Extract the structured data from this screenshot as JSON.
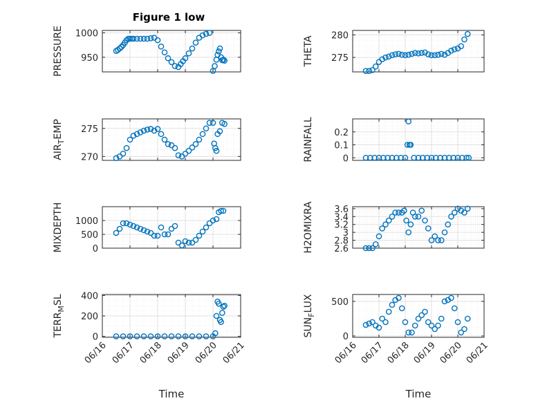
{
  "marker_color": "#0072BD",
  "chart_data": [
    {
      "type": "scatter",
      "title": "Figure 1 low",
      "ylabel": "PRESSURE",
      "xlabel": "",
      "xlim": [
        "06/16",
        "06/21"
      ],
      "ylim": [
        920,
        1005
      ],
      "xticks": [
        "06/16",
        "06/17",
        "06/18",
        "06/19",
        "06/20",
        "06/21"
      ],
      "show_xticklabels": false,
      "yticks": [
        950,
        1000
      ],
      "series": [
        {
          "x": [
            "06/16 12:00",
            "06/16 13:30",
            "06/16 15:00",
            "06/16 16:30",
            "06/16 18:00",
            "06/16 19:30",
            "06/16 21:00",
            "06/16 22:30",
            "06/17 00:00",
            "06/17 01:30",
            "06/17 03:00",
            "06/17 06:00",
            "06/17 09:00",
            "06/17 12:00",
            "06/17 15:00",
            "06/17 18:00",
            "06/17 21:00",
            "06/18 00:00",
            "06/18 03:00",
            "06/18 06:00",
            "06/18 09:00",
            "06/18 12:00",
            "06/18 15:00",
            "06/18 18:00",
            "06/18 20:00",
            "06/18 22:00",
            "06/19 00:00",
            "06/19 03:00",
            "06/19 06:00",
            "06/19 09:00",
            "06/19 12:00",
            "06/19 15:00",
            "06/19 18:00",
            "06/19 21:00",
            "06/20 00:00",
            "06/20 01:30",
            "06/20 03:00",
            "06/20 04:00",
            "06/20 05:00",
            "06/20 06:00",
            "06/20 07:00",
            "06/20 08:00",
            "06/20 09:00",
            "06/20 10:00"
          ],
          "y": [
            963,
            965,
            968,
            971,
            975,
            980,
            985,
            988,
            988,
            988,
            988,
            988,
            988,
            988,
            988,
            989,
            990,
            985,
            972,
            960,
            948,
            940,
            932,
            930,
            936,
            942,
            948,
            958,
            968,
            980,
            990,
            995,
            998,
            1000,
            922,
            932,
            945,
            955,
            962,
            968,
            950,
            944,
            945,
            943
          ]
        }
      ]
    },
    {
      "type": "scatter",
      "title": "",
      "ylabel": "THETA",
      "xlabel": "",
      "xlim": [
        "06/16",
        "06/21"
      ],
      "ylim": [
        271.8,
        281
      ],
      "xticks": [
        "06/16",
        "06/17",
        "06/18",
        "06/19",
        "06/20",
        "06/21"
      ],
      "show_xticklabels": false,
      "yticks": [
        275,
        280
      ],
      "series": [
        {
          "x": [
            "06/16 12:00",
            "06/16 15:00",
            "06/16 18:00",
            "06/16 21:00",
            "06/17 00:00",
            "06/17 03:00",
            "06/17 06:00",
            "06/17 09:00",
            "06/17 12:00",
            "06/17 15:00",
            "06/17 18:00",
            "06/17 21:00",
            "06/18 00:00",
            "06/18 03:00",
            "06/18 06:00",
            "06/18 09:00",
            "06/18 12:00",
            "06/18 15:00",
            "06/18 18:00",
            "06/18 21:00",
            "06/19 00:00",
            "06/19 03:00",
            "06/19 06:00",
            "06/19 09:00",
            "06/19 12:00",
            "06/19 15:00",
            "06/19 18:00",
            "06/19 21:00",
            "06/20 00:00",
            "06/20 03:00",
            "06/20 06:00",
            "06/20 09:00"
          ],
          "y": [
            272,
            272,
            272.2,
            273,
            274,
            274.6,
            275,
            275.2,
            275.5,
            275.7,
            275.8,
            275.6,
            275.5,
            275.6,
            275.8,
            276,
            275.9,
            276,
            276.1,
            275.7,
            275.5,
            275.5,
            275.6,
            275.8,
            275.6,
            276,
            276.5,
            276.8,
            277,
            277.5,
            279,
            280.2
          ]
        }
      ]
    },
    {
      "type": "scatter",
      "title": "",
      "ylabel": "AIR_TEMP",
      "xlabel": "",
      "xlim": [
        "06/16",
        "06/21"
      ],
      "ylim": [
        269.3,
        276.7
      ],
      "xticks": [
        "06/16",
        "06/17",
        "06/18",
        "06/19",
        "06/20",
        "06/21"
      ],
      "show_xticklabels": false,
      "yticks": [
        270,
        275
      ],
      "series": [
        {
          "x": [
            "06/16 12:00",
            "06/16 15:00",
            "06/16 18:00",
            "06/16 21:00",
            "06/17 00:00",
            "06/17 03:00",
            "06/17 06:00",
            "06/17 09:00",
            "06/17 12:00",
            "06/17 15:00",
            "06/17 18:00",
            "06/17 21:00",
            "06/18 00:00",
            "06/18 03:00",
            "06/18 06:00",
            "06/18 09:00",
            "06/18 12:00",
            "06/18 15:00",
            "06/18 18:00",
            "06/18 21:00",
            "06/19 00:00",
            "06/19 03:00",
            "06/19 06:00",
            "06/19 09:00",
            "06/19 12:00",
            "06/19 15:00",
            "06/19 18:00",
            "06/19 21:00",
            "06/20 00:00",
            "06/20 01:00",
            "06/20 02:00",
            "06/20 03:00",
            "06/20 04:00",
            "06/20 06:00",
            "06/20 08:00",
            "06/20 10:00"
          ],
          "y": [
            269.7,
            270,
            270.5,
            271.5,
            273,
            273.7,
            274,
            274.3,
            274.6,
            274.8,
            274.9,
            274.6,
            274.9,
            274,
            273,
            272.2,
            272,
            271.5,
            270.2,
            270,
            270.5,
            271,
            271.6,
            272.2,
            273,
            274,
            275,
            276,
            276,
            272.3,
            271.5,
            271,
            274,
            274.5,
            276,
            275.8
          ]
        }
      ]
    },
    {
      "type": "scatter",
      "title": "",
      "ylabel": "RAINFALL",
      "xlabel": "",
      "xlim": [
        "06/16",
        "06/21"
      ],
      "ylim": [
        -0.02,
        0.3
      ],
      "xticks": [
        "06/16",
        "06/17",
        "06/18",
        "06/19",
        "06/20",
        "06/21"
      ],
      "show_xticklabels": false,
      "yticks": [
        0,
        0.1,
        0.2
      ],
      "series": [
        {
          "x": [
            "06/16 12:00",
            "06/16 16:00",
            "06/16 20:00",
            "06/17 00:00",
            "06/17 04:00",
            "06/17 08:00",
            "06/17 12:00",
            "06/17 16:00",
            "06/17 20:00",
            "06/18 00:00",
            "06/18 02:00",
            "06/18 03:00",
            "06/18 04:00",
            "06/18 05:00",
            "06/18 08:00",
            "06/18 12:00",
            "06/18 16:00",
            "06/18 20:00",
            "06/19 00:00",
            "06/19 04:00",
            "06/19 08:00",
            "06/19 12:00",
            "06/19 16:00",
            "06/19 20:00",
            "06/20 00:00",
            "06/20 04:00",
            "06/20 08:00",
            "06/20 10:00"
          ],
          "y": [
            0,
            0,
            0,
            0,
            0,
            0,
            0,
            0,
            0,
            0,
            0.1,
            0.28,
            0.1,
            0.1,
            0,
            0,
            0,
            0,
            0,
            0,
            0,
            0,
            0,
            0,
            0,
            0,
            0,
            0
          ]
        }
      ]
    },
    {
      "type": "scatter",
      "title": "",
      "ylabel": "MIXDEPTH",
      "xlabel": "",
      "xlim": [
        "06/16",
        "06/21"
      ],
      "ylim": [
        0,
        1500
      ],
      "xticks": [
        "06/16",
        "06/17",
        "06/18",
        "06/19",
        "06/20",
        "06/21"
      ],
      "show_xticklabels": false,
      "yticks": [
        0,
        500,
        1000
      ],
      "series": [
        {
          "x": [
            "06/16 12:00",
            "06/16 15:00",
            "06/16 18:00",
            "06/16 21:00",
            "06/17 00:00",
            "06/17 03:00",
            "06/17 06:00",
            "06/17 09:00",
            "06/17 12:00",
            "06/17 15:00",
            "06/17 18:00",
            "06/17 21:00",
            "06/18 00:00",
            "06/18 03:00",
            "06/18 06:00",
            "06/18 09:00",
            "06/18 12:00",
            "06/18 15:00",
            "06/18 18:00",
            "06/18 21:00",
            "06/19 00:00",
            "06/19 03:00",
            "06/19 06:00",
            "06/19 09:00",
            "06/19 12:00",
            "06/19 15:00",
            "06/19 18:00",
            "06/19 21:00",
            "06/20 00:00",
            "06/20 03:00",
            "06/20 05:00",
            "06/20 07:00",
            "06/20 09:00"
          ],
          "y": [
            550,
            700,
            900,
            900,
            850,
            800,
            750,
            700,
            650,
            600,
            550,
            450,
            450,
            750,
            500,
            500,
            700,
            800,
            200,
            100,
            250,
            200,
            200,
            300,
            450,
            600,
            750,
            900,
            1000,
            1050,
            1300,
            1350,
            1350
          ]
        }
      ]
    },
    {
      "type": "scatter",
      "title": "",
      "ylabel": "H2OMIXRA",
      "xlabel": "",
      "xlim": [
        "06/16",
        "06/21"
      ],
      "ylim": [
        2.6,
        3.65
      ],
      "xticks": [
        "06/16",
        "06/17",
        "06/18",
        "06/19",
        "06/20",
        "06/21"
      ],
      "show_xticklabels": false,
      "yticks": [
        2.6,
        2.8,
        3,
        3.2,
        3.4,
        3.6
      ],
      "yticklabels": [
        "2.6",
        "2.8",
        "3",
        "3.2",
        "3.4",
        "3.6"
      ],
      "series": [
        {
          "x": [
            "06/16 12:00",
            "06/16 15:00",
            "06/16 18:00",
            "06/16 21:00",
            "06/17 00:00",
            "06/17 03:00",
            "06/17 06:00",
            "06/17 09:00",
            "06/17 12:00",
            "06/17 15:00",
            "06/17 18:00",
            "06/17 21:00",
            "06/17 23:00",
            "06/18 01:00",
            "06/18 03:00",
            "06/18 05:00",
            "06/18 07:00",
            "06/18 09:00",
            "06/18 12:00",
            "06/18 15:00",
            "06/18 18:00",
            "06/18 21:00",
            "06/19 00:00",
            "06/19 03:00",
            "06/19 06:00",
            "06/19 09:00",
            "06/19 12:00",
            "06/19 15:00",
            "06/19 18:00",
            "06/19 21:00",
            "06/20 00:00",
            "06/20 03:00",
            "06/20 06:00",
            "06/20 09:00"
          ],
          "y": [
            2.6,
            2.6,
            2.6,
            2.7,
            2.9,
            3.1,
            3.2,
            3.3,
            3.4,
            3.5,
            3.5,
            3.5,
            3.55,
            3.3,
            3.0,
            3.2,
            3.5,
            3.4,
            3.4,
            3.55,
            3.3,
            3.1,
            2.8,
            2.9,
            2.8,
            2.8,
            3.0,
            3.2,
            3.4,
            3.5,
            3.6,
            3.55,
            3.5,
            3.6
          ]
        }
      ]
    },
    {
      "type": "scatter",
      "title": "",
      "ylabel": "TERR_MSL",
      "xlabel": "Time",
      "xlim": [
        "06/16",
        "06/21"
      ],
      "ylim": [
        -10,
        410
      ],
      "xticks": [
        "06/16",
        "06/17",
        "06/18",
        "06/19",
        "06/20",
        "06/21"
      ],
      "show_xticklabels": true,
      "yticks": [
        0,
        200,
        400
      ],
      "series": [
        {
          "x": [
            "06/16 12:00",
            "06/16 18:00",
            "06/17 00:00",
            "06/17 06:00",
            "06/17 12:00",
            "06/17 18:00",
            "06/18 00:00",
            "06/18 06:00",
            "06/18 12:00",
            "06/18 18:00",
            "06/19 00:00",
            "06/19 06:00",
            "06/19 12:00",
            "06/19 18:00",
            "06/20 00:00",
            "06/20 02:00",
            "06/20 03:00",
            "06/20 04:00",
            "06/20 05:00",
            "06/20 06:00",
            "06/20 07:00",
            "06/20 08:00",
            "06/20 09:00",
            "06/20 10:00"
          ],
          "y": [
            0,
            0,
            0,
            0,
            0,
            0,
            0,
            0,
            0,
            0,
            0,
            0,
            0,
            0,
            0,
            30,
            200,
            340,
            320,
            160,
            140,
            230,
            290,
            300
          ]
        }
      ]
    },
    {
      "type": "scatter",
      "title": "",
      "ylabel": "SUN_FLUX",
      "xlabel": "Time",
      "xlim": [
        "06/16",
        "06/21"
      ],
      "ylim": [
        -20,
        600
      ],
      "xticks": [
        "06/16",
        "06/17",
        "06/18",
        "06/19",
        "06/20",
        "06/21"
      ],
      "show_xticklabels": true,
      "yticks": [
        0,
        500
      ],
      "series": [
        {
          "x": [
            "06/16 12:00",
            "06/16 15:00",
            "06/16 18:00",
            "06/16 21:00",
            "06/17 00:00",
            "06/17 03:00",
            "06/17 06:00",
            "06/17 09:00",
            "06/17 12:00",
            "06/17 15:00",
            "06/17 18:00",
            "06/17 21:00",
            "06/18 00:00",
            "06/18 03:00",
            "06/18 06:00",
            "06/18 09:00",
            "06/18 12:00",
            "06/18 15:00",
            "06/18 18:00",
            "06/18 21:00",
            "06/19 00:00",
            "06/19 03:00",
            "06/19 06:00",
            "06/19 09:00",
            "06/19 12:00",
            "06/19 15:00",
            "06/19 18:00",
            "06/19 21:00",
            "06/20 00:00",
            "06/20 03:00",
            "06/20 06:00",
            "06/20 09:00"
          ],
          "y": [
            160,
            180,
            200,
            150,
            120,
            250,
            200,
            350,
            450,
            520,
            550,
            400,
            200,
            50,
            50,
            150,
            250,
            300,
            350,
            200,
            150,
            100,
            150,
            250,
            500,
            520,
            550,
            400,
            200,
            50,
            100,
            250
          ]
        }
      ]
    }
  ]
}
